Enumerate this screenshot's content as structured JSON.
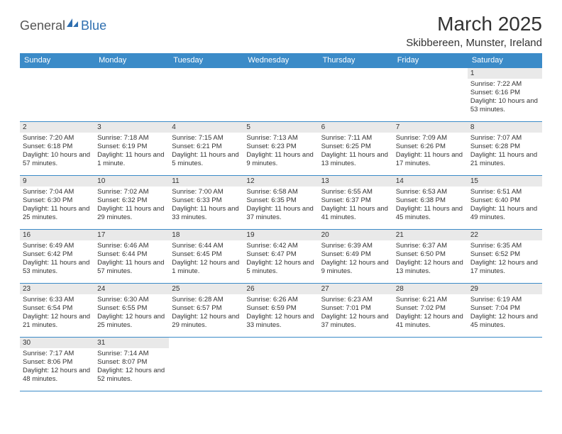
{
  "logo": {
    "word1": "General",
    "word2": "Blue",
    "sail_color": "#2f6fb0"
  },
  "title": "March 2025",
  "location": "Skibbereen, Munster, Ireland",
  "colors": {
    "header_bg": "#3b8bc8",
    "grid_line": "#3b8bc8",
    "daynum_bg": "#e9e9e9",
    "text": "#333333"
  },
  "weekdays": [
    "Sunday",
    "Monday",
    "Tuesday",
    "Wednesday",
    "Thursday",
    "Friday",
    "Saturday"
  ],
  "weeks": [
    [
      null,
      null,
      null,
      null,
      null,
      null,
      {
        "n": "1",
        "sr": "Sunrise: 7:22 AM",
        "ss": "Sunset: 6:16 PM",
        "dl": "Daylight: 10 hours and 53 minutes."
      }
    ],
    [
      {
        "n": "2",
        "sr": "Sunrise: 7:20 AM",
        "ss": "Sunset: 6:18 PM",
        "dl": "Daylight: 10 hours and 57 minutes."
      },
      {
        "n": "3",
        "sr": "Sunrise: 7:18 AM",
        "ss": "Sunset: 6:19 PM",
        "dl": "Daylight: 11 hours and 1 minute."
      },
      {
        "n": "4",
        "sr": "Sunrise: 7:15 AM",
        "ss": "Sunset: 6:21 PM",
        "dl": "Daylight: 11 hours and 5 minutes."
      },
      {
        "n": "5",
        "sr": "Sunrise: 7:13 AM",
        "ss": "Sunset: 6:23 PM",
        "dl": "Daylight: 11 hours and 9 minutes."
      },
      {
        "n": "6",
        "sr": "Sunrise: 7:11 AM",
        "ss": "Sunset: 6:25 PM",
        "dl": "Daylight: 11 hours and 13 minutes."
      },
      {
        "n": "7",
        "sr": "Sunrise: 7:09 AM",
        "ss": "Sunset: 6:26 PM",
        "dl": "Daylight: 11 hours and 17 minutes."
      },
      {
        "n": "8",
        "sr": "Sunrise: 7:07 AM",
        "ss": "Sunset: 6:28 PM",
        "dl": "Daylight: 11 hours and 21 minutes."
      }
    ],
    [
      {
        "n": "9",
        "sr": "Sunrise: 7:04 AM",
        "ss": "Sunset: 6:30 PM",
        "dl": "Daylight: 11 hours and 25 minutes."
      },
      {
        "n": "10",
        "sr": "Sunrise: 7:02 AM",
        "ss": "Sunset: 6:32 PM",
        "dl": "Daylight: 11 hours and 29 minutes."
      },
      {
        "n": "11",
        "sr": "Sunrise: 7:00 AM",
        "ss": "Sunset: 6:33 PM",
        "dl": "Daylight: 11 hours and 33 minutes."
      },
      {
        "n": "12",
        "sr": "Sunrise: 6:58 AM",
        "ss": "Sunset: 6:35 PM",
        "dl": "Daylight: 11 hours and 37 minutes."
      },
      {
        "n": "13",
        "sr": "Sunrise: 6:55 AM",
        "ss": "Sunset: 6:37 PM",
        "dl": "Daylight: 11 hours and 41 minutes."
      },
      {
        "n": "14",
        "sr": "Sunrise: 6:53 AM",
        "ss": "Sunset: 6:38 PM",
        "dl": "Daylight: 11 hours and 45 minutes."
      },
      {
        "n": "15",
        "sr": "Sunrise: 6:51 AM",
        "ss": "Sunset: 6:40 PM",
        "dl": "Daylight: 11 hours and 49 minutes."
      }
    ],
    [
      {
        "n": "16",
        "sr": "Sunrise: 6:49 AM",
        "ss": "Sunset: 6:42 PM",
        "dl": "Daylight: 11 hours and 53 minutes."
      },
      {
        "n": "17",
        "sr": "Sunrise: 6:46 AM",
        "ss": "Sunset: 6:44 PM",
        "dl": "Daylight: 11 hours and 57 minutes."
      },
      {
        "n": "18",
        "sr": "Sunrise: 6:44 AM",
        "ss": "Sunset: 6:45 PM",
        "dl": "Daylight: 12 hours and 1 minute."
      },
      {
        "n": "19",
        "sr": "Sunrise: 6:42 AM",
        "ss": "Sunset: 6:47 PM",
        "dl": "Daylight: 12 hours and 5 minutes."
      },
      {
        "n": "20",
        "sr": "Sunrise: 6:39 AM",
        "ss": "Sunset: 6:49 PM",
        "dl": "Daylight: 12 hours and 9 minutes."
      },
      {
        "n": "21",
        "sr": "Sunrise: 6:37 AM",
        "ss": "Sunset: 6:50 PM",
        "dl": "Daylight: 12 hours and 13 minutes."
      },
      {
        "n": "22",
        "sr": "Sunrise: 6:35 AM",
        "ss": "Sunset: 6:52 PM",
        "dl": "Daylight: 12 hours and 17 minutes."
      }
    ],
    [
      {
        "n": "23",
        "sr": "Sunrise: 6:33 AM",
        "ss": "Sunset: 6:54 PM",
        "dl": "Daylight: 12 hours and 21 minutes."
      },
      {
        "n": "24",
        "sr": "Sunrise: 6:30 AM",
        "ss": "Sunset: 6:55 PM",
        "dl": "Daylight: 12 hours and 25 minutes."
      },
      {
        "n": "25",
        "sr": "Sunrise: 6:28 AM",
        "ss": "Sunset: 6:57 PM",
        "dl": "Daylight: 12 hours and 29 minutes."
      },
      {
        "n": "26",
        "sr": "Sunrise: 6:26 AM",
        "ss": "Sunset: 6:59 PM",
        "dl": "Daylight: 12 hours and 33 minutes."
      },
      {
        "n": "27",
        "sr": "Sunrise: 6:23 AM",
        "ss": "Sunset: 7:01 PM",
        "dl": "Daylight: 12 hours and 37 minutes."
      },
      {
        "n": "28",
        "sr": "Sunrise: 6:21 AM",
        "ss": "Sunset: 7:02 PM",
        "dl": "Daylight: 12 hours and 41 minutes."
      },
      {
        "n": "29",
        "sr": "Sunrise: 6:19 AM",
        "ss": "Sunset: 7:04 PM",
        "dl": "Daylight: 12 hours and 45 minutes."
      }
    ],
    [
      {
        "n": "30",
        "sr": "Sunrise: 7:17 AM",
        "ss": "Sunset: 8:06 PM",
        "dl": "Daylight: 12 hours and 48 minutes."
      },
      {
        "n": "31",
        "sr": "Sunrise: 7:14 AM",
        "ss": "Sunset: 8:07 PM",
        "dl": "Daylight: 12 hours and 52 minutes."
      },
      null,
      null,
      null,
      null,
      null
    ]
  ]
}
